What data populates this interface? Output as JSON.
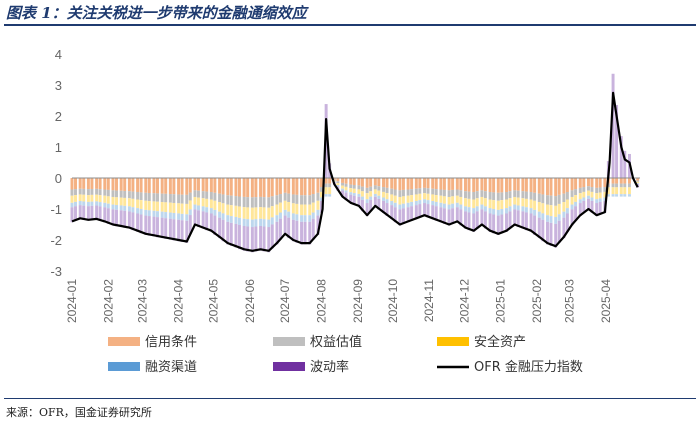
{
  "figure_title": "图表 1：关注关税进一步带来的金融通缩效应",
  "source": "来源：OFR，国金证券研究所",
  "chart_data": {
    "type": "bar+line",
    "title": "图表 1：关注关税进一步带来的金融通缩效应",
    "ylim": [
      -3,
      4
    ],
    "yticks": [
      -3,
      -2,
      -1,
      0,
      1,
      2,
      3,
      4
    ],
    "x_range": [
      "2024-01-01",
      "2025-04-30"
    ],
    "x_tick_labels": [
      "2024-01",
      "2024-02",
      "2024-03",
      "2024-04",
      "2024-05",
      "2024-06",
      "2024-07",
      "2024-08",
      "2024-09",
      "2024-10",
      "2024-11",
      "2024-12",
      "2025-01",
      "2025-02",
      "2025-03",
      "2025-04"
    ],
    "grid": false,
    "legend_position": "bottom",
    "stacked_bar_series": [
      {
        "name": "信用条件",
        "color": "#f4b183"
      },
      {
        "name": "权益估值",
        "color": "#bfbfbf"
      },
      {
        "name": "安全资产",
        "color": "#ffe699"
      },
      {
        "name": "融资渠道",
        "color": "#bdd7ee"
      },
      {
        "name": "波动率",
        "color": "#c9b3dd"
      }
    ],
    "line_series": {
      "name": "OFR 金融压力指数",
      "color": "#000000",
      "points": [
        [
          "2024-01-01",
          -1.4
        ],
        [
          "2024-01-08",
          -1.3
        ],
        [
          "2024-01-15",
          -1.35
        ],
        [
          "2024-01-22",
          -1.32
        ],
        [
          "2024-01-29",
          -1.4
        ],
        [
          "2024-02-05",
          -1.5
        ],
        [
          "2024-02-12",
          -1.55
        ],
        [
          "2024-02-19",
          -1.6
        ],
        [
          "2024-02-26",
          -1.7
        ],
        [
          "2024-03-04",
          -1.8
        ],
        [
          "2024-03-11",
          -1.85
        ],
        [
          "2024-03-18",
          -1.9
        ],
        [
          "2024-03-25",
          -1.95
        ],
        [
          "2024-04-01",
          -2.0
        ],
        [
          "2024-04-08",
          -2.05
        ],
        [
          "2024-04-15",
          -1.5
        ],
        [
          "2024-04-22",
          -1.6
        ],
        [
          "2024-04-29",
          -1.7
        ],
        [
          "2024-05-06",
          -1.9
        ],
        [
          "2024-05-13",
          -2.1
        ],
        [
          "2024-05-20",
          -2.2
        ],
        [
          "2024-05-27",
          -2.3
        ],
        [
          "2024-06-03",
          -2.35
        ],
        [
          "2024-06-10",
          -2.3
        ],
        [
          "2024-06-17",
          -2.35
        ],
        [
          "2024-06-24",
          -2.1
        ],
        [
          "2024-07-01",
          -1.8
        ],
        [
          "2024-07-08",
          -2.0
        ],
        [
          "2024-07-15",
          -2.1
        ],
        [
          "2024-07-22",
          -2.1
        ],
        [
          "2024-07-29",
          -1.8
        ],
        [
          "2024-08-02",
          -1.0
        ],
        [
          "2024-08-05",
          1.9
        ],
        [
          "2024-08-08",
          0.3
        ],
        [
          "2024-08-12",
          -0.2
        ],
        [
          "2024-08-19",
          -0.6
        ],
        [
          "2024-08-26",
          -0.8
        ],
        [
          "2024-09-02",
          -0.9
        ],
        [
          "2024-09-09",
          -1.2
        ],
        [
          "2024-09-16",
          -0.9
        ],
        [
          "2024-09-23",
          -1.1
        ],
        [
          "2024-09-30",
          -1.3
        ],
        [
          "2024-10-07",
          -1.5
        ],
        [
          "2024-10-14",
          -1.4
        ],
        [
          "2024-10-21",
          -1.3
        ],
        [
          "2024-10-28",
          -1.2
        ],
        [
          "2024-11-04",
          -1.3
        ],
        [
          "2024-11-11",
          -1.4
        ],
        [
          "2024-11-18",
          -1.5
        ],
        [
          "2024-11-25",
          -1.4
        ],
        [
          "2024-12-02",
          -1.6
        ],
        [
          "2024-12-09",
          -1.7
        ],
        [
          "2024-12-16",
          -1.5
        ],
        [
          "2024-12-23",
          -1.7
        ],
        [
          "2024-12-30",
          -1.8
        ],
        [
          "2025-01-06",
          -1.7
        ],
        [
          "2025-01-13",
          -1.5
        ],
        [
          "2025-01-20",
          -1.6
        ],
        [
          "2025-01-27",
          -1.7
        ],
        [
          "2025-02-03",
          -1.9
        ],
        [
          "2025-02-10",
          -2.1
        ],
        [
          "2025-02-17",
          -2.2
        ],
        [
          "2025-02-24",
          -1.9
        ],
        [
          "2025-03-03",
          -1.5
        ],
        [
          "2025-03-10",
          -1.2
        ],
        [
          "2025-03-17",
          -1.0
        ],
        [
          "2025-03-24",
          -1.2
        ],
        [
          "2025-03-31",
          -1.1
        ],
        [
          "2025-04-04",
          0.5
        ],
        [
          "2025-04-07",
          2.75
        ],
        [
          "2025-04-10",
          2.0
        ],
        [
          "2025-04-14",
          1.0
        ],
        [
          "2025-04-17",
          0.6
        ],
        [
          "2025-04-21",
          0.5
        ],
        [
          "2025-04-24",
          0.0
        ],
        [
          "2025-04-28",
          -0.3
        ]
      ]
    }
  },
  "legend": {
    "credit": "信用条件",
    "equity": "权益估值",
    "safe": "安全资产",
    "funding": "融资渠道",
    "vol": "波动率",
    "ofr": "OFR 金融压力指数"
  },
  "colors": {
    "credit": "#f4b183",
    "equity": "#bfbfbf",
    "safe": "#ffe699",
    "funding": "#bdd7ee",
    "vol": "#c9b3dd",
    "ofr": "#000000",
    "axis": "#8c8c8c"
  }
}
